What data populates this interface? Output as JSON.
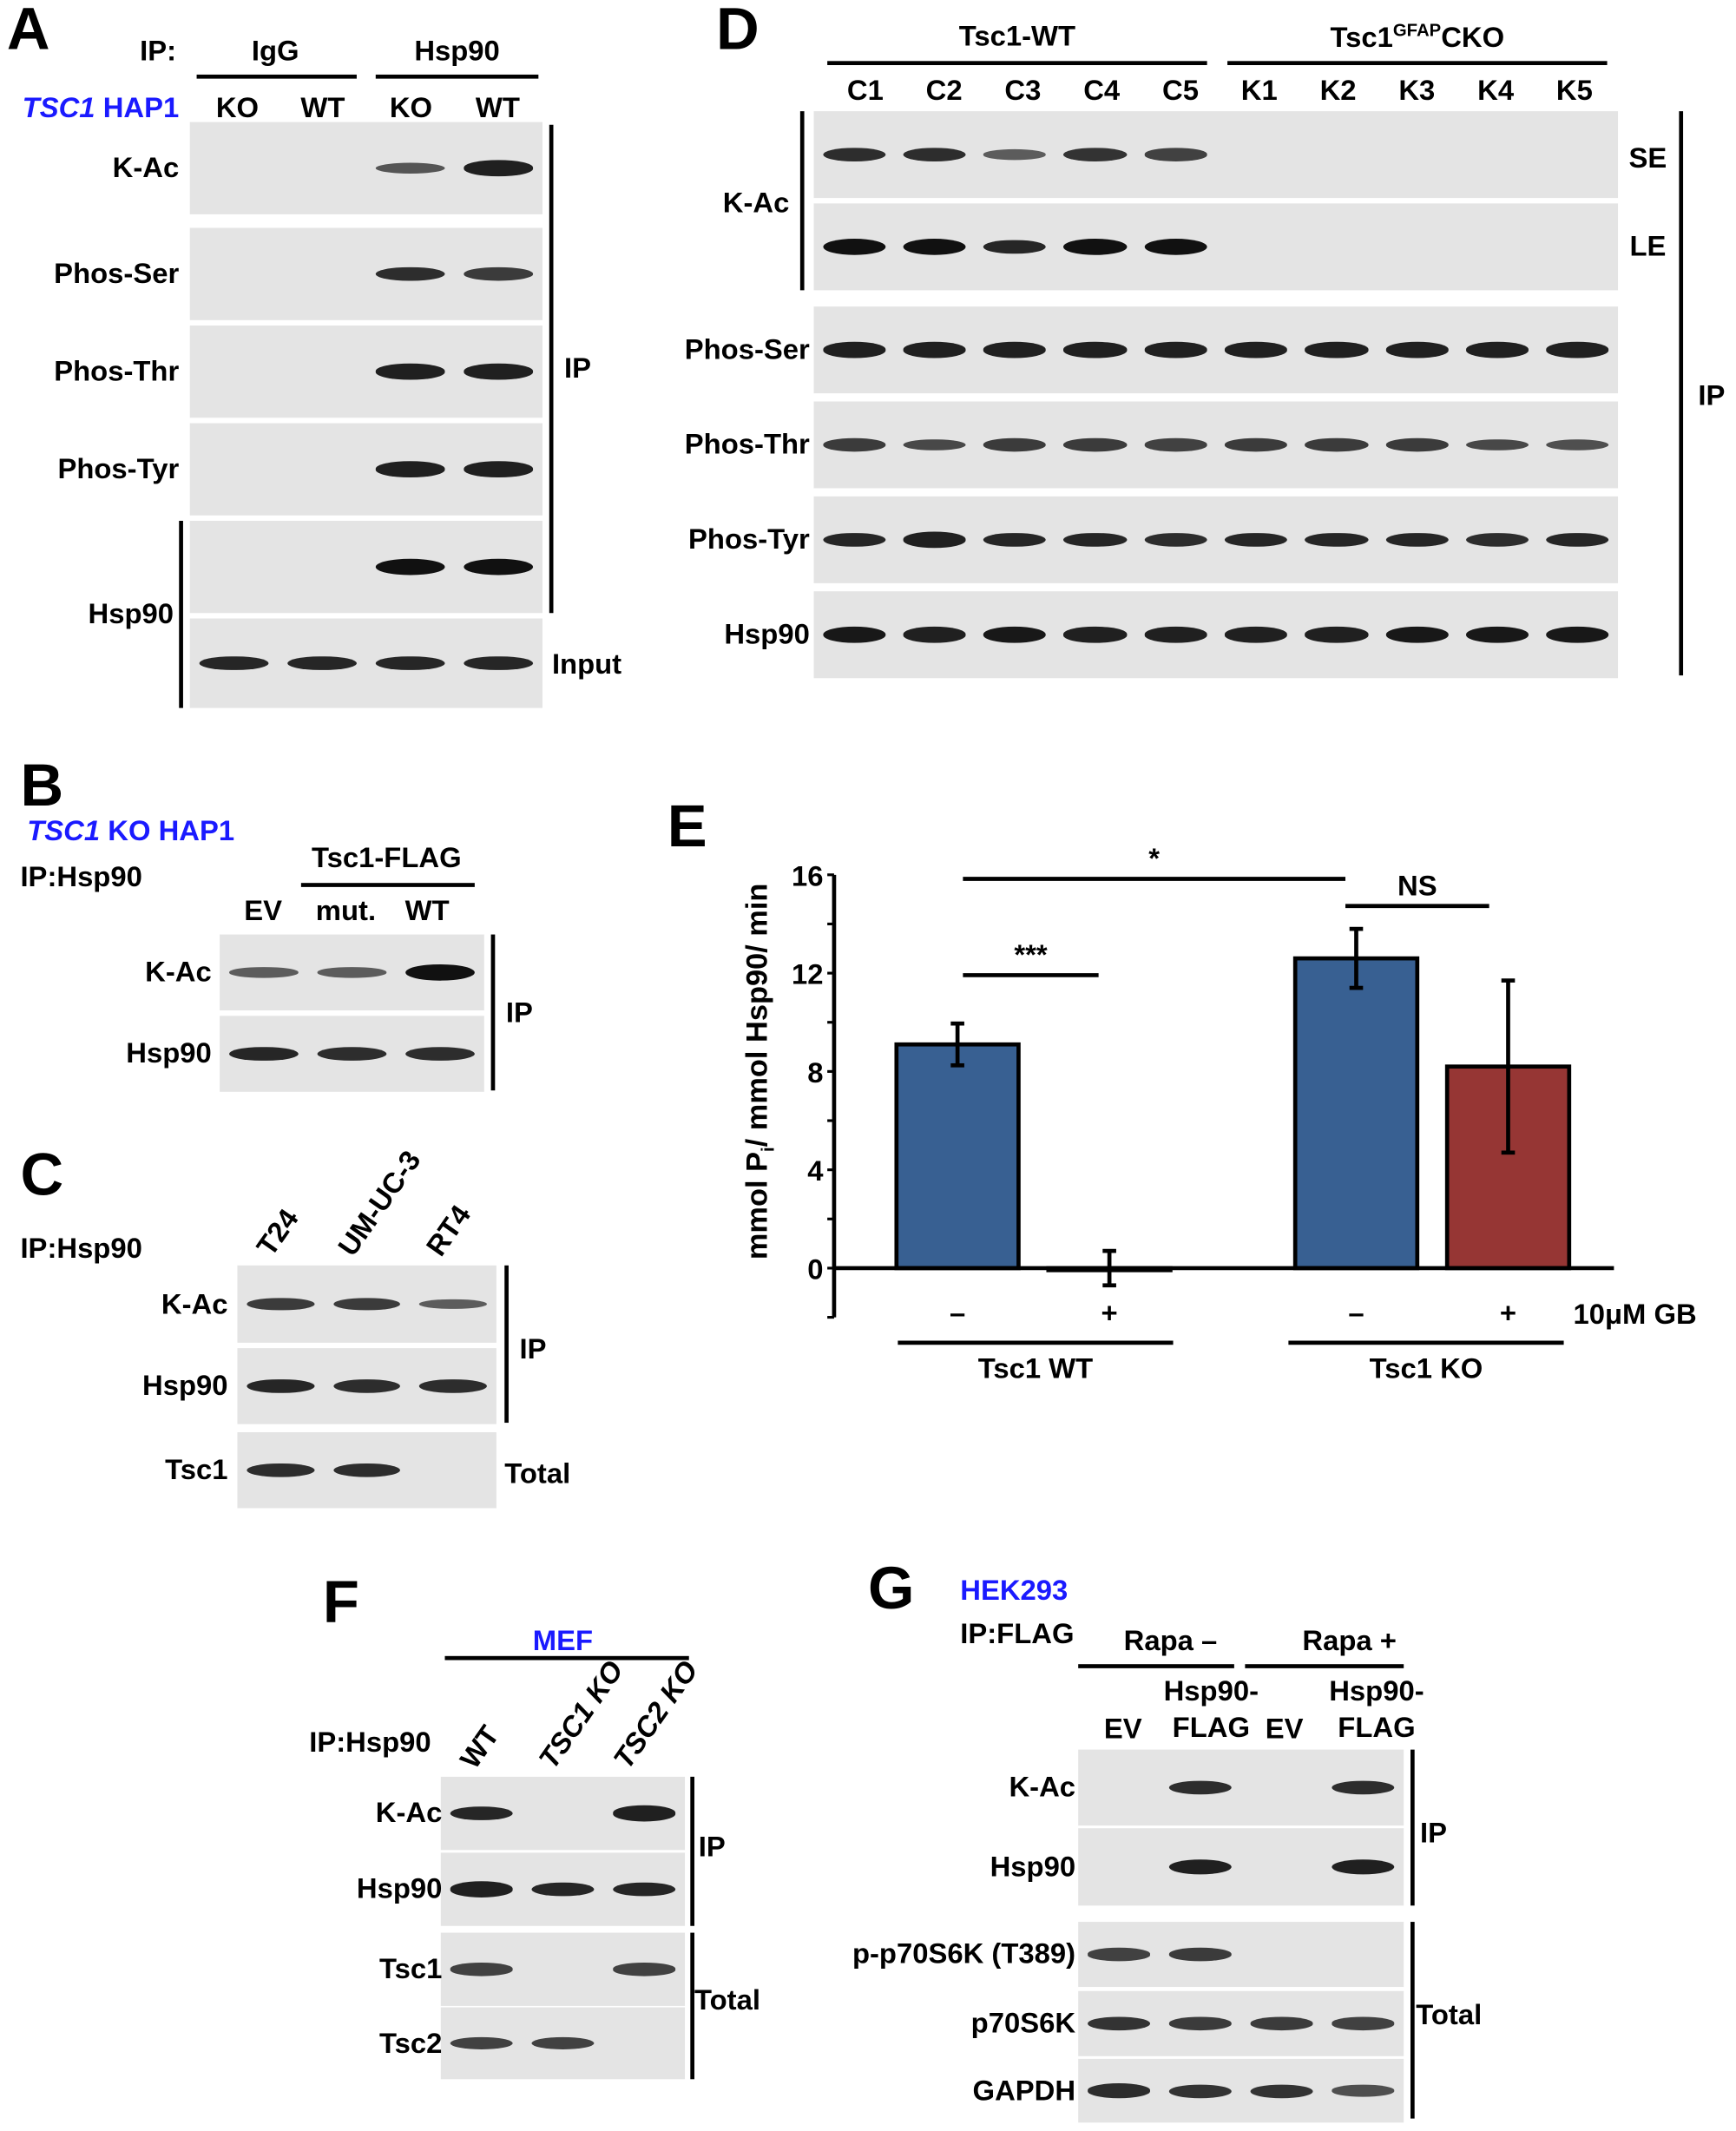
{
  "panels": {
    "A": {
      "label": "A",
      "ip_label": "IP:",
      "cell_label_italic": "TSC1",
      "cell_label": "HAP1",
      "groups": [
        "IgG",
        "Hsp90"
      ],
      "lanes": [
        "KO",
        "WT",
        "KO",
        "WT"
      ],
      "blots": [
        {
          "label": "K-Ac",
          "bands": [
            0,
            0,
            0.5,
            0.9
          ]
        },
        {
          "label": "Phos-Ser",
          "bands": [
            0,
            0,
            0.8,
            0.7
          ]
        },
        {
          "label": "Phos-Thr",
          "bands": [
            0,
            0,
            0.9,
            0.9
          ]
        },
        {
          "label": "Phos-Tyr",
          "bands": [
            0,
            0,
            0.9,
            0.9
          ]
        },
        {
          "label": "",
          "bands": [
            0,
            0,
            1,
            1
          ]
        },
        {
          "label": "",
          "bands": [
            0.85,
            0.85,
            0.85,
            0.85
          ]
        }
      ],
      "hsp90_label": "Hsp90",
      "ip_bracket": "IP",
      "input_label": "Input"
    },
    "B": {
      "label": "B",
      "cell_label_italic": "TSC1",
      "cell_label": "KO HAP1",
      "ip_label": "IP:Hsp90",
      "group": "Tsc1-FLAG",
      "lanes": [
        "EV",
        "mut.",
        "WT"
      ],
      "blots": [
        {
          "label": "K-Ac",
          "bands": [
            0.45,
            0.45,
            1
          ]
        },
        {
          "label": "Hsp90",
          "bands": [
            0.85,
            0.8,
            0.8
          ]
        }
      ],
      "ip_bracket": "IP"
    },
    "C": {
      "label": "C",
      "ip_label": "IP:Hsp90",
      "lanes": [
        "T24",
        "UM-UC-3",
        "RT4"
      ],
      "blots": [
        {
          "label": "K-Ac",
          "bands": [
            0.7,
            0.7,
            0.45
          ]
        },
        {
          "label": "Hsp90",
          "bands": [
            0.85,
            0.8,
            0.8
          ]
        },
        {
          "label": "Tsc1",
          "bands": [
            0.8,
            0.8,
            0
          ]
        }
      ],
      "ip_bracket": "IP",
      "total_label": "Total"
    },
    "D": {
      "label": "D",
      "group_wt": "Tsc1-WT",
      "group_ko_main": "Tsc1",
      "group_ko_sup": "GFAP",
      "group_ko_end": "CKO",
      "lanes": [
        "C1",
        "C2",
        "C3",
        "C4",
        "C5",
        "K1",
        "K2",
        "K3",
        "K4",
        "K5"
      ],
      "kac_label": "K-Ac",
      "se_label": "SE",
      "le_label": "LE",
      "blots": [
        {
          "label": "",
          "bands": [
            0.8,
            0.8,
            0.45,
            0.75,
            0.65,
            0,
            0,
            0,
            0,
            0
          ]
        },
        {
          "label": "",
          "bands": [
            1,
            1,
            0.85,
            1,
            1,
            0,
            0,
            0,
            0,
            0
          ]
        },
        {
          "label": "Phos-Ser",
          "bands": [
            0.9,
            0.9,
            0.9,
            0.9,
            0.9,
            0.9,
            0.9,
            0.9,
            0.9,
            0.9
          ]
        },
        {
          "label": "Phos-Thr",
          "bands": [
            0.7,
            0.6,
            0.7,
            0.7,
            0.65,
            0.7,
            0.7,
            0.7,
            0.6,
            0.55
          ]
        },
        {
          "label": "Phos-Tyr",
          "bands": [
            0.85,
            0.9,
            0.85,
            0.85,
            0.8,
            0.85,
            0.85,
            0.85,
            0.8,
            0.85
          ]
        },
        {
          "label": "Hsp90",
          "bands": [
            0.95,
            0.9,
            0.95,
            0.9,
            0.9,
            0.9,
            0.9,
            0.95,
            0.95,
            0.95
          ]
        }
      ],
      "ip_bracket": "IP"
    },
    "F": {
      "label": "F",
      "cell_label": "MEF",
      "ip_label": "IP:Hsp90",
      "lanes": [
        "WT",
        "TSC1 KO",
        "TSC2 KO"
      ],
      "blots": [
        {
          "label": "K-Ac",
          "bands": [
            0.85,
            0,
            0.9
          ]
        },
        {
          "label": "Hsp90",
          "bands": [
            0.9,
            0.85,
            0.85
          ]
        },
        {
          "label": "Tsc1",
          "bands": [
            0.65,
            0,
            0.65
          ]
        },
        {
          "label": "Tsc2",
          "bands": [
            0.65,
            0.65,
            0
          ]
        }
      ],
      "ip_bracket": "IP",
      "total_label": "Total"
    },
    "G": {
      "label": "G",
      "cell_label": "HEK293",
      "ip_label": "IP:FLAG",
      "groups": [
        "Rapa –",
        "Rapa +"
      ],
      "lanes": [
        "EV",
        "Hsp90-\nFLAG",
        "EV",
        "Hsp90-\nFLAG"
      ],
      "blots": [
        {
          "label": "K-Ac",
          "bands": [
            0,
            0.8,
            0,
            0.8
          ]
        },
        {
          "label": "Hsp90",
          "bands": [
            0,
            0.9,
            0,
            0.9
          ]
        },
        {
          "label": "p-p70S6K (T389)",
          "bands": [
            0.65,
            0.7,
            0,
            0
          ]
        },
        {
          "label": "p70S6K",
          "bands": [
            0.75,
            0.7,
            0.7,
            0.65
          ]
        },
        {
          "label": "GAPDH",
          "bands": [
            0.8,
            0.75,
            0.75,
            0.55
          ]
        }
      ],
      "ip_bracket": "IP",
      "total_label": "Total"
    }
  },
  "chart_data": {
    "type": "bar",
    "panel_label": "E",
    "ylabel": "mmol Pi/ mmol Hsp90/ min",
    "ylim": [
      -2,
      16
    ],
    "yticks": [
      0,
      4,
      8,
      12,
      16
    ],
    "grid": false,
    "categories": [
      "–",
      "+",
      "–",
      "+"
    ],
    "treatment_label": "10μM GB",
    "groups": [
      {
        "name": "Tsc1 WT",
        "bars": [
          0,
          1
        ]
      },
      {
        "name": "Tsc1 KO",
        "bars": [
          2,
          3
        ]
      }
    ],
    "values": [
      9.1,
      0.0,
      12.6,
      8.2
    ],
    "errors": [
      0.85,
      0.7,
      1.2,
      3.5
    ],
    "colors": [
      "#386092",
      "#386092",
      "#386092",
      "#963634"
    ],
    "significance": [
      {
        "from": 0,
        "to": 1,
        "label": "***"
      },
      {
        "from": 0,
        "to": 2,
        "label": "*"
      },
      {
        "from": 2,
        "to": 3,
        "label": "NS"
      }
    ]
  }
}
